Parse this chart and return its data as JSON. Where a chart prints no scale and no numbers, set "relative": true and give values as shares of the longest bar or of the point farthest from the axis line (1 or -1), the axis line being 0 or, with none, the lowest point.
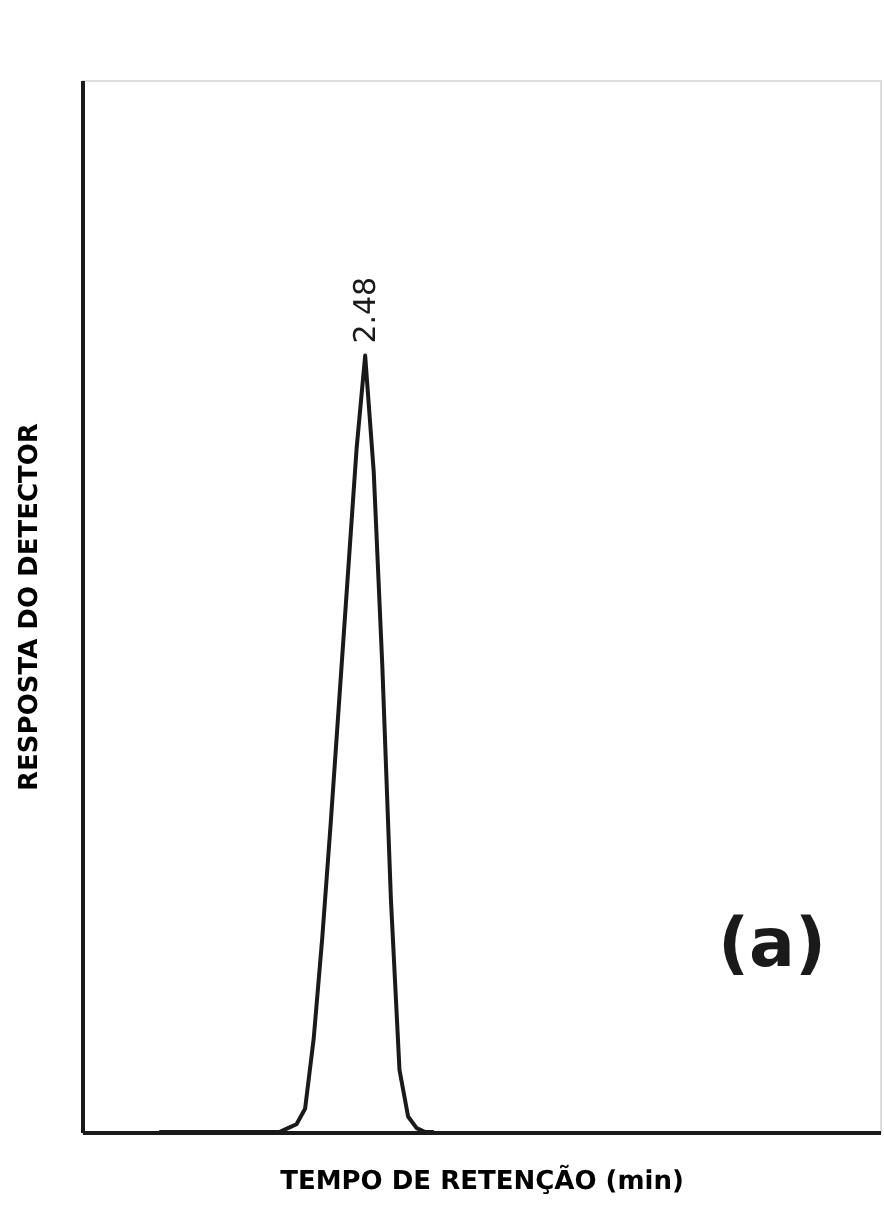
{
  "chart_data": {
    "type": "line",
    "relative": true,
    "xlabel": "TEMPO DE RETENÇÃO (min)",
    "ylabel": "RESPOSTA DO DETECTOR",
    "categories": [
      null,
      null,
      null,
      null,
      null,
      null,
      null,
      null,
      null,
      null,
      null,
      null,
      null,
      null,
      null,
      null,
      null,
      null,
      null,
      null,
      null,
      null,
      null,
      null,
      null,
      null,
      null,
      null,
      null,
      null,
      null,
      null,
      null,
      null,
      null,
      null,
      null,
      null,
      null,
      null,
      null,
      null,
      null,
      null,
      null,
      null,
      null,
      null,
      null,
      null,
      null,
      null,
      null,
      null,
      null,
      null,
      null,
      null,
      null,
      null,
      null,
      null,
      null,
      null,
      null,
      null,
      null,
      null,
      null,
      null,
      null,
      null,
      null,
      null,
      null,
      null,
      null,
      null,
      null,
      null,
      null,
      null,
      null,
      null,
      null,
      null,
      null,
      null,
      null,
      null,
      null,
      null,
      null,
      null
    ],
    "series": [
      {
        "color": "#1a1a1a",
        "values": [
          null,
          null,
          null,
          null,
          null,
          null,
          null,
          null,
          null,
          0,
          0,
          0,
          0,
          0,
          0,
          0,
          0,
          0,
          0,
          0,
          0,
          0,
          0,
          0,
          0.005,
          0.01,
          0.03,
          0.12,
          0.25,
          0.4,
          0.56,
          0.72,
          0.88,
          1,
          0.85,
          0.6,
          0.3,
          0.08,
          0.02,
          0.005,
          0,
          0,
          null,
          null,
          null,
          null,
          null,
          null,
          null,
          null,
          null,
          null,
          null,
          null,
          null,
          null,
          null,
          null,
          null,
          null,
          null,
          null,
          null,
          null,
          null,
          null,
          null,
          null,
          null,
          null,
          null,
          null,
          null,
          null,
          null,
          null,
          null,
          null,
          null,
          null,
          null,
          null,
          null,
          null,
          null,
          null,
          null,
          null,
          null,
          null,
          null,
          null,
          null,
          null
        ]
      }
    ],
    "annotations": [
      {
        "text": "2.48",
        "y": 1
      },
      "(a)"
    ],
    "grid": false,
    "legend": false,
    "marker": "none",
    "line_style": "solid"
  }
}
